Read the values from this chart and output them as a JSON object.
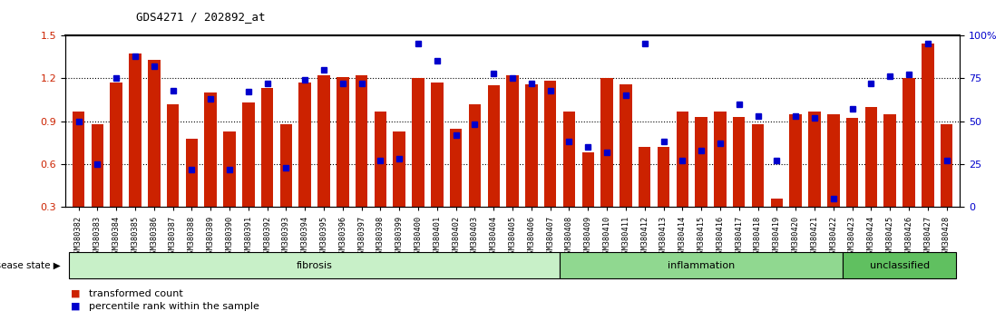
{
  "title": "GDS4271 / 202892_at",
  "categories": [
    "GSM380382",
    "GSM380383",
    "GSM380384",
    "GSM380385",
    "GSM380386",
    "GSM380387",
    "GSM380388",
    "GSM380389",
    "GSM380390",
    "GSM380391",
    "GSM380392",
    "GSM380393",
    "GSM380394",
    "GSM380395",
    "GSM380396",
    "GSM380397",
    "GSM380398",
    "GSM380399",
    "GSM380400",
    "GSM380401",
    "GSM380402",
    "GSM380403",
    "GSM380404",
    "GSM380405",
    "GSM380406",
    "GSM380407",
    "GSM380408",
    "GSM380409",
    "GSM380410",
    "GSM380411",
    "GSM380412",
    "GSM380413",
    "GSM380414",
    "GSM380415",
    "GSM380416",
    "GSM380417",
    "GSM380418",
    "GSM380419",
    "GSM380420",
    "GSM380421",
    "GSM380422",
    "GSM380423",
    "GSM380424",
    "GSM380425",
    "GSM380426",
    "GSM380427",
    "GSM380428"
  ],
  "bar_values": [
    0.97,
    0.88,
    1.17,
    1.37,
    1.33,
    1.02,
    0.78,
    1.1,
    0.83,
    1.03,
    1.13,
    0.88,
    1.17,
    1.22,
    1.21,
    1.22,
    0.97,
    0.83,
    1.2,
    1.17,
    0.85,
    1.02,
    1.15,
    1.22,
    1.16,
    1.18,
    0.97,
    0.68,
    1.2,
    1.16,
    0.72,
    0.72,
    0.97,
    0.93,
    0.97,
    0.93,
    0.88,
    0.36,
    0.95,
    0.97,
    0.95,
    0.92,
    1.0,
    0.95,
    1.2,
    1.44,
    0.88
  ],
  "percentile_values_pct": [
    50,
    25,
    75,
    88,
    82,
    68,
    22,
    63,
    22,
    67,
    72,
    23,
    74,
    80,
    72,
    72,
    27,
    28,
    95,
    85,
    42,
    48,
    78,
    75,
    72,
    68,
    38,
    35,
    32,
    65,
    95,
    38,
    27,
    33,
    37,
    60,
    53,
    27,
    53,
    52,
    5,
    57,
    72,
    76,
    77,
    95,
    27
  ],
  "groups": [
    {
      "label": "fibrosis",
      "start": 0,
      "end": 26,
      "color": "#c8f0c8"
    },
    {
      "label": "inflammation",
      "start": 26,
      "end": 41,
      "color": "#90d890"
    },
    {
      "label": "unclassified",
      "start": 41,
      "end": 47,
      "color": "#60c060"
    }
  ],
  "bar_color": "#cc2200",
  "marker_color": "#0000cc",
  "ylim_left": [
    0.3,
    1.5
  ],
  "ylim_right": [
    0,
    100
  ],
  "yticks_left": [
    0.3,
    0.6,
    0.9,
    1.2,
    1.5
  ],
  "yticks_right": [
    0,
    25,
    50,
    75,
    100
  ],
  "ytick_labels_right": [
    "0",
    "25",
    "50",
    "75",
    "100%"
  ],
  "hlines": [
    0.6,
    0.9,
    1.2
  ],
  "background_color": "#ffffff",
  "disease_state_label": "disease state",
  "legend_items": [
    "transformed count",
    "percentile rank within the sample"
  ]
}
